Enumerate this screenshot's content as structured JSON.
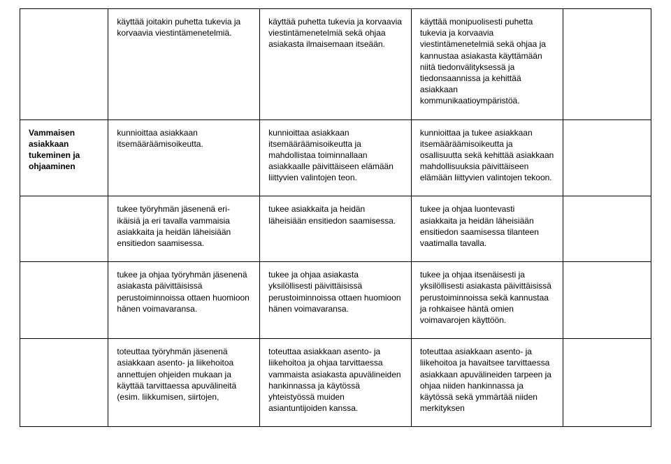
{
  "rows": [
    {
      "label": "",
      "colA": "käyttää joitakin puhetta tukevia ja korvaavia viestintämenetelmiä.",
      "colB": "käyttää puhetta tukevia ja korvaavia viestintämenetelmiä sekä ohjaa asiakasta ilmaisemaan itseään.",
      "colC": "käyttää monipuolisesti puhetta tukevia ja korvaavia viestintämenetelmiä sekä ohjaa ja kannustaa asiakasta käyttämään niitä tiedonvälityksessä ja tiedonsaannissa ja kehittää asiakkaan kommunikaatioympäristöä.",
      "colD": ""
    },
    {
      "label": "Vammaisen asiakkaan tukeminen ja ohjaaminen",
      "colA": "kunnioittaa asiakkaan itsemääräämisoikeutta.",
      "colB": "kunnioittaa asiakkaan itsemääräämisoikeutta ja mahdollistaa toiminnallaan asiakkaalle päivittäiseen elämään liittyvien valintojen teon.",
      "colC": "kunnioittaa ja tukee asiakkaan itsemääräämisoikeutta ja osallisuutta sekä kehittää asiakkaan mahdollisuuksia päivittäiseen elämään liittyvien valintojen tekoon.",
      "colD": ""
    },
    {
      "label": "",
      "colA": "tukee työryhmän jäsenenä eri-ikäisiä ja eri tavalla vammaisia asiakkaita ja heidän läheisiään ensitiedon saamisessa.",
      "colB": "tukee asiakkaita ja heidän läheisiään ensitiedon saamisessa.",
      "colC": "tukee ja ohjaa luontevasti asiakkaita ja heidän läheisiään ensitiedon saamisessa tilanteen vaatimalla tavalla.",
      "colD": ""
    },
    {
      "label": "",
      "colA": "tukee ja ohjaa työryhmän jäsenenä asiakasta päivittäisissä perustoiminnoissa ottaen huomioon hänen voimavaransa.",
      "colB": "tukee ja ohjaa asiakasta yksilöllisesti päivittäisissä perustoiminnoissa ottaen huomioon hänen voimavaransa.",
      "colC": "tukee ja ohjaa itsenäisesti ja yksilöllisesti asiakasta päivittäisissä perustoiminnoissa sekä kannustaa ja rohkaisee häntä omien voimavarojen käyttöön.",
      "colD": ""
    },
    {
      "label": "",
      "colA": "toteuttaa työryhmän jäsenenä asiakkaan asento- ja liikehoitoa annettujen ohjeiden mukaan ja käyttää tarvittaessa apuvälineitä (esim. liikkumisen, siirtojen,",
      "colB": "toteuttaa asiakkaan asento- ja liikehoitoa ja ohjaa tarvittaessa vammaista asiakasta apuvälineiden hankinnassa ja käytössä yhteistyössä muiden asiantuntijoiden kanssa.",
      "colC": "toteuttaa asiakkaan asento- ja liikehoitoa ja havaitsee tarvittaessa asiakkaan apuvälineiden tarpeen ja ohjaa niiden hankinnassa ja käytössä sekä ymmärtää niiden merkityksen",
      "colD": ""
    }
  ]
}
